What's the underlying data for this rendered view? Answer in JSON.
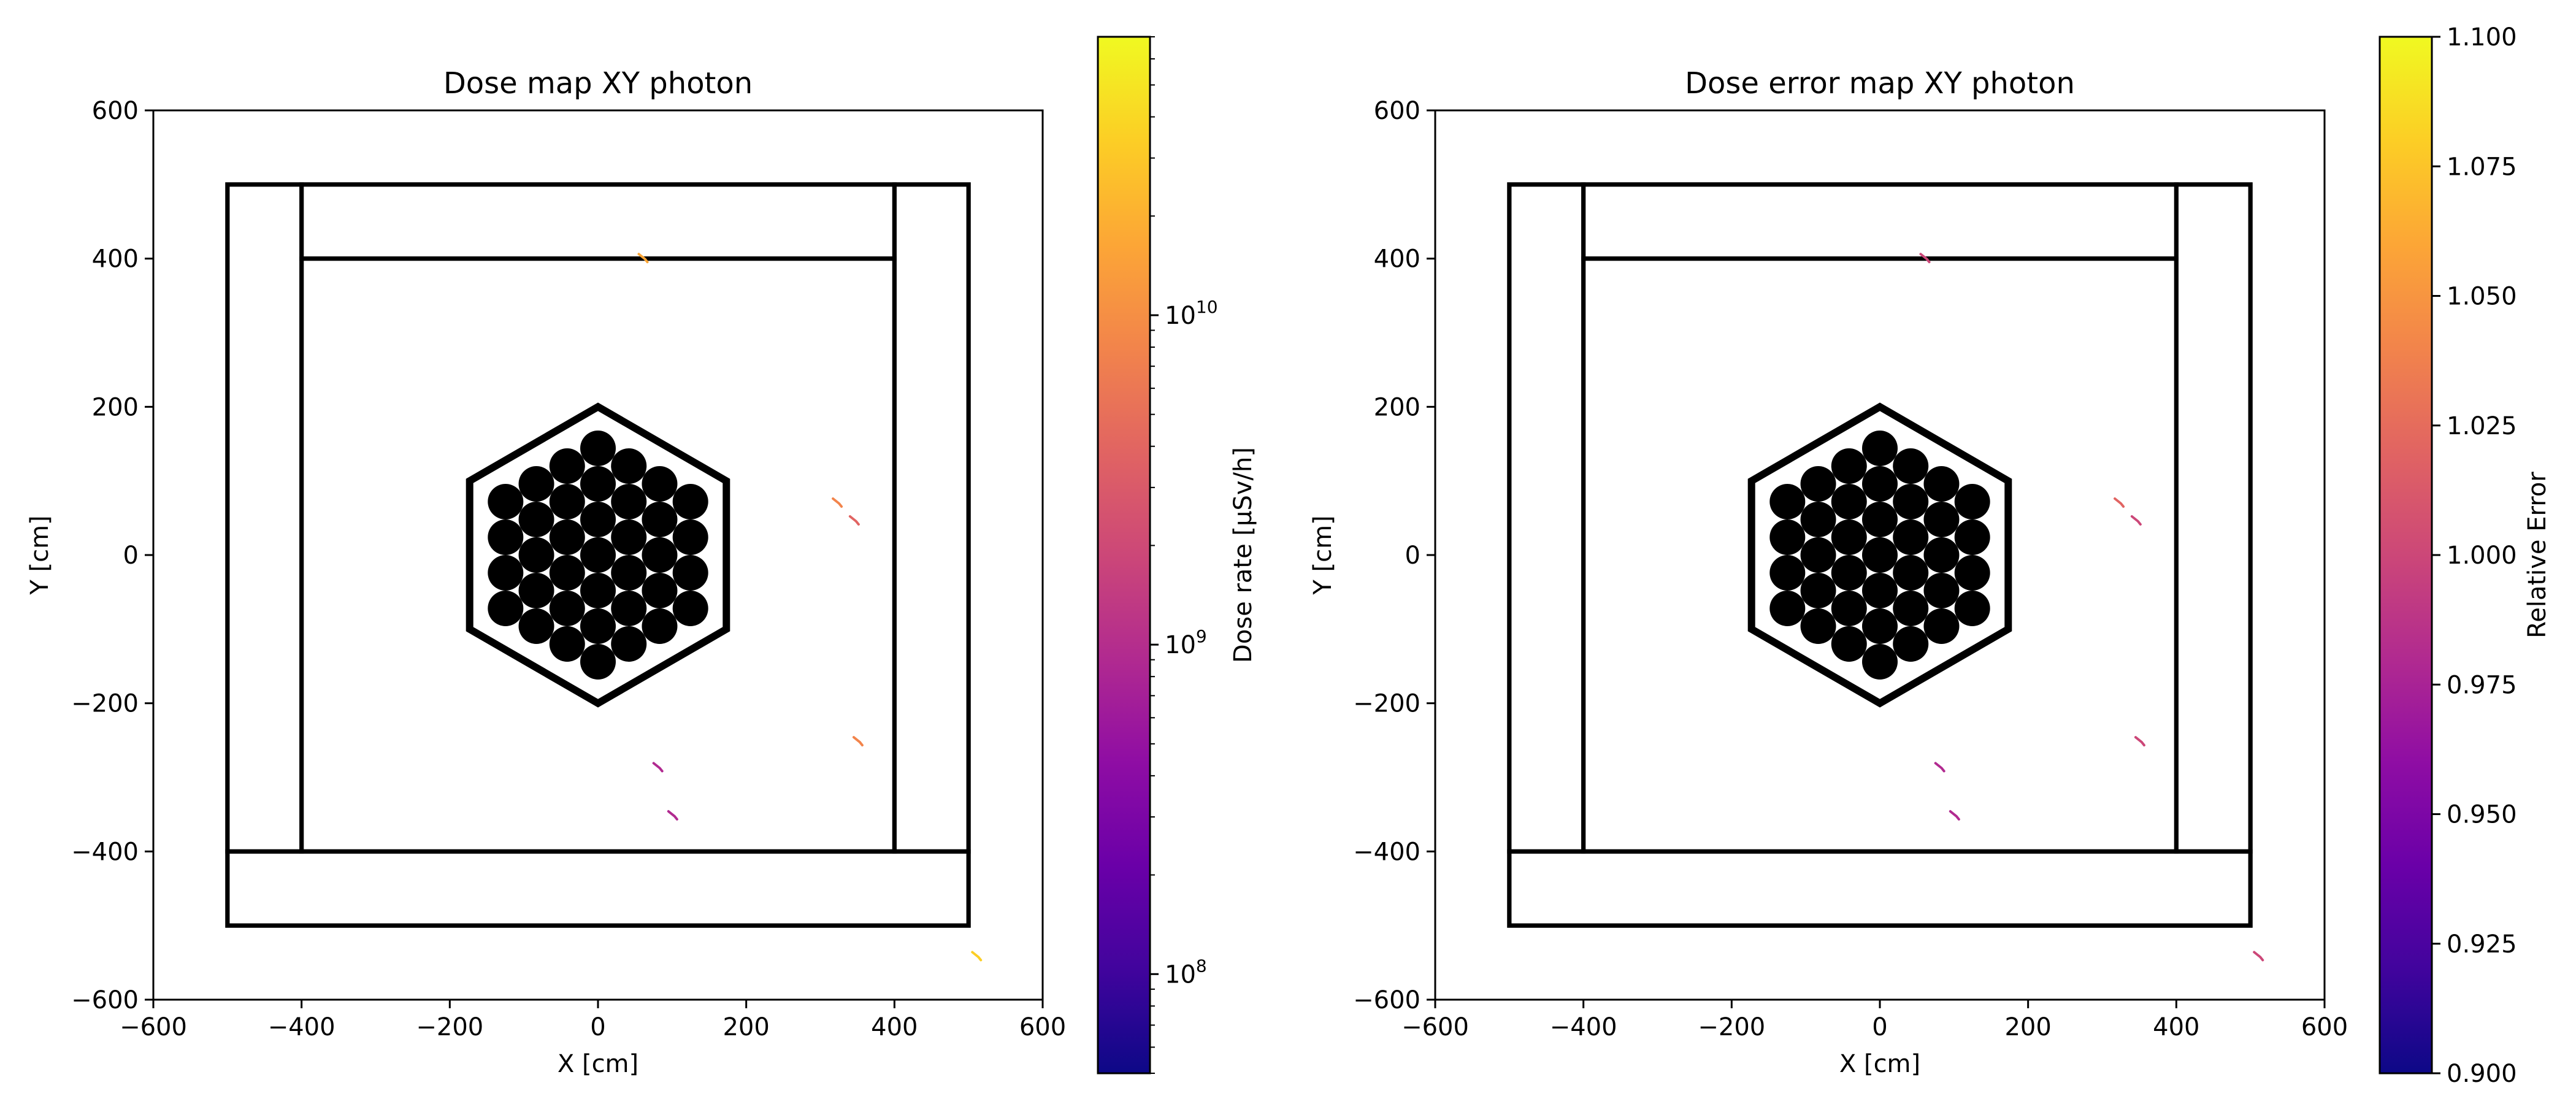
{
  "chart_data": [
    {
      "type": "heatmap",
      "title": "Dose map XY photon",
      "xlabel": "X [cm]",
      "ylabel": "Y [cm]",
      "xlim": [
        -600,
        600
      ],
      "ylim": [
        -600,
        600
      ],
      "xticks": [
        "−600",
        "−400",
        "−200",
        "0",
        "200",
        "400",
        "600"
      ],
      "yticks": [
        "600",
        "400",
        "200",
        "0",
        "−200",
        "−400",
        "−600"
      ],
      "geometry": {
        "walls": [
          {
            "x0": -500,
            "x1": 500,
            "y0": -500,
            "y1": 500
          },
          {
            "x0": -400,
            "x1": 400,
            "y0": -400,
            "y1": 400
          },
          {
            "x0": -400,
            "x1": 400,
            "y0": 400,
            "y1": 500
          },
          {
            "x0": -500,
            "x1": -400,
            "y0": -400,
            "y1": 500
          },
          {
            "x0": 400,
            "x1": 500,
            "y0": -400,
            "y1": 500
          },
          {
            "x0": -500,
            "x1": 500,
            "y0": -500,
            "y1": -400
          }
        ],
        "hexagon": {
          "center": [
            0,
            0
          ],
          "circumradius": 200,
          "rod_radius": 24,
          "rod_pitch": 48
        }
      },
      "hotspots": [
        {
          "x": 60,
          "y": 402,
          "value": 12000000000.0
        },
        {
          "x": 322,
          "y": 72,
          "value": 10000000000.0
        },
        {
          "x": 345,
          "y": 48,
          "value": 3000000000.0
        },
        {
          "x": 80,
          "y": -285,
          "value": 1000000000.0
        },
        {
          "x": 100,
          "y": -350,
          "value": 800000000.0
        },
        {
          "x": 350,
          "y": -250,
          "value": 6000000000.0
        },
        {
          "x": 510,
          "y": -540,
          "value": 30000000000.0
        }
      ],
      "colorbar": {
        "label": "Dose rate [μSv/h]",
        "scale": "log",
        "min": 50000000.0,
        "max": 70000000000.0,
        "colormap": "plasma",
        "ticks": [
          {
            "value": 100000000.0,
            "base": "10",
            "exp": "8"
          },
          {
            "value": 1000000000.0,
            "base": "10",
            "exp": "9"
          },
          {
            "value": 10000000000.0,
            "base": "10",
            "exp": "10"
          }
        ]
      }
    },
    {
      "type": "heatmap",
      "title": "Dose error map XY photon",
      "xlabel": "X [cm]",
      "ylabel": "Y [cm]",
      "xlim": [
        -600,
        600
      ],
      "ylim": [
        -600,
        600
      ],
      "xticks": [
        "−600",
        "−400",
        "−200",
        "0",
        "200",
        "400",
        "600"
      ],
      "yticks": [
        "600",
        "400",
        "200",
        "0",
        "−200",
        "−400",
        "−600"
      ],
      "geometry": {
        "walls": [
          {
            "x0": -500,
            "x1": 500,
            "y0": -500,
            "y1": 500
          },
          {
            "x0": -400,
            "x1": 400,
            "y0": -400,
            "y1": 400
          },
          {
            "x0": -400,
            "x1": 400,
            "y0": 400,
            "y1": 500
          },
          {
            "x0": -500,
            "x1": -400,
            "y0": -400,
            "y1": 500
          },
          {
            "x0": 400,
            "x1": 500,
            "y0": -400,
            "y1": 500
          },
          {
            "x0": -500,
            "x1": 500,
            "y0": -500,
            "y1": -400
          }
        ],
        "hexagon": {
          "center": [
            0,
            0
          ],
          "circumradius": 200,
          "rod_radius": 24,
          "rod_pitch": 48
        }
      },
      "hotspots": [
        {
          "x": 60,
          "y": 402,
          "value": 1.0
        },
        {
          "x": 322,
          "y": 72,
          "value": 1.02
        },
        {
          "x": 345,
          "y": 48,
          "value": 1.01
        },
        {
          "x": 80,
          "y": -285,
          "value": 0.99
        },
        {
          "x": 100,
          "y": -350,
          "value": 0.98
        },
        {
          "x": 350,
          "y": -250,
          "value": 1.0
        },
        {
          "x": 510,
          "y": -540,
          "value": 1.0
        }
      ],
      "colorbar": {
        "label": "Relative Error",
        "scale": "linear",
        "min": 0.9,
        "max": 1.1,
        "colormap": "plasma",
        "ticks": [
          {
            "value": 1.1,
            "text": "1.100"
          },
          {
            "value": 1.075,
            "text": "1.075"
          },
          {
            "value": 1.05,
            "text": "1.050"
          },
          {
            "value": 1.025,
            "text": "1.025"
          },
          {
            "value": 1.0,
            "text": "1.000"
          },
          {
            "value": 0.975,
            "text": "0.975"
          },
          {
            "value": 0.95,
            "text": "0.950"
          },
          {
            "value": 0.925,
            "text": "0.925"
          },
          {
            "value": 0.9,
            "text": "0.900"
          }
        ]
      }
    }
  ],
  "colors": {
    "plasma": [
      "#0d0887",
      "#41049d",
      "#6a00a8",
      "#8f0da4",
      "#b12a90",
      "#cc4778",
      "#e16462",
      "#f2844b",
      "#fca636",
      "#fcce25",
      "#f0f921"
    ]
  }
}
